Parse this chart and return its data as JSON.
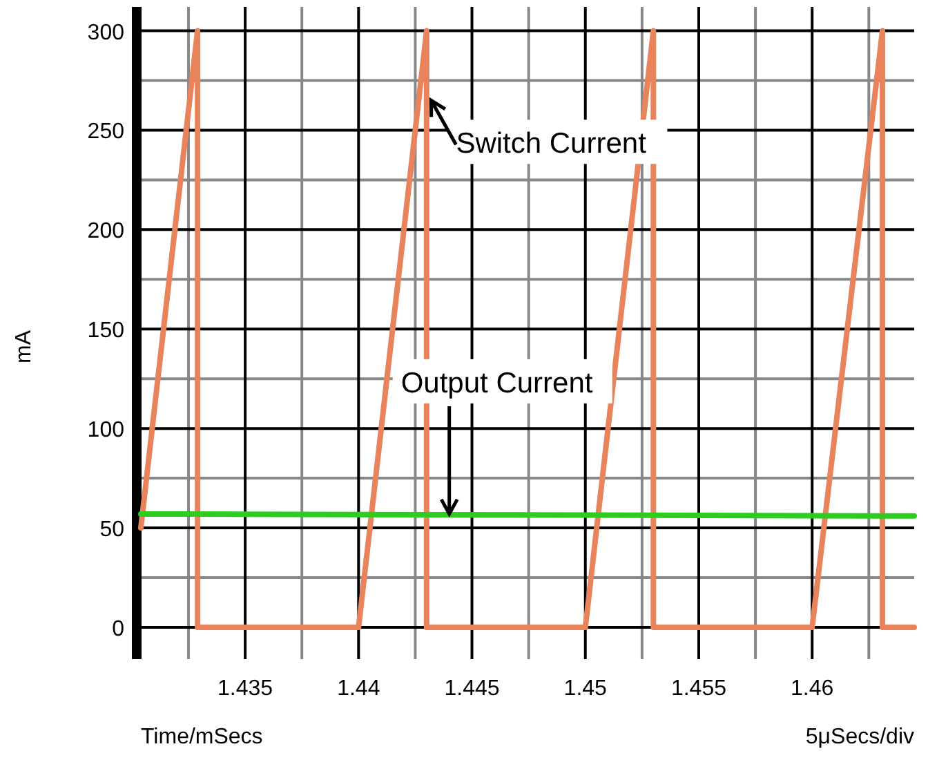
{
  "chart_data": {
    "type": "line",
    "xlabel": "Time/mSecs",
    "ylabel": "mA",
    "series": [
      {
        "color": "#e8835c",
        "x": [
          1.4304,
          1.4329,
          1.4329,
          1.44,
          1.443,
          1.443,
          1.45,
          1.453,
          1.453,
          1.46,
          1.4631,
          1.4631,
          1.4645
        ],
        "values": [
          50,
          300,
          0,
          0,
          300,
          0,
          0,
          300,
          0,
          0,
          300,
          0,
          0
        ]
      },
      {
        "color": "#2ecc1f",
        "x": [
          1.4304,
          1.4645
        ],
        "values": [
          57,
          56
        ]
      }
    ],
    "xlim": [
      1.4304,
      1.4645
    ],
    "ylim": [
      -16,
      312
    ],
    "xticks": [
      1.435,
      1.44,
      1.445,
      1.45,
      1.455,
      1.46
    ],
    "yticks": [
      0,
      50,
      100,
      150,
      200,
      250,
      300
    ],
    "grid": true,
    "line_style": "solid",
    "annotations": [
      {
        "text": "Switch Current",
        "x": 1.4432,
        "y": 265
      },
      {
        "text": "Output Current",
        "x": 1.444,
        "y": 57
      },
      "5μSecs/div"
    ]
  }
}
